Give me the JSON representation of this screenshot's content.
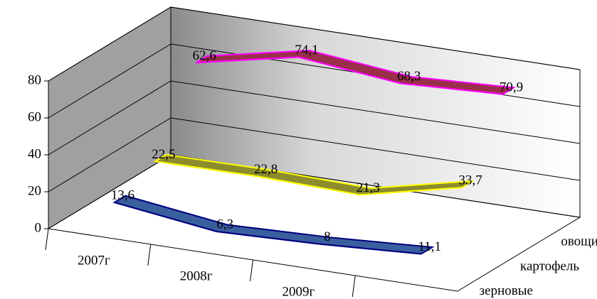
{
  "chart_data": {
    "type": "line3d",
    "categories": [
      "2007г",
      "2008г",
      "2009г",
      null
    ],
    "series": [
      {
        "name": "зерновые",
        "color": "#3a5f9e",
        "edge": "#000080",
        "values": [
          13.6,
          6.3,
          8,
          11.1
        ],
        "value_labels": [
          "13,6",
          "6,3",
          "8",
          "11,1"
        ]
      },
      {
        "name": "картофель",
        "color": "#8c8c2e",
        "edge": "#ffff00",
        "values": [
          22.5,
          22.8,
          21.3,
          33.7
        ],
        "value_labels": [
          "22,5",
          "22,8",
          "21,3",
          "33,7"
        ]
      },
      {
        "name": "овощи",
        "color": "#9a2f4a",
        "edge": "#ff00ff",
        "values": [
          62.6,
          74.1,
          68.3,
          70.9
        ],
        "value_labels": [
          "62,6",
          "74,1",
          "68,3",
          "70,9"
        ]
      }
    ],
    "ylim": [
      0,
      80
    ],
    "yticks": [
      0,
      20,
      40,
      60,
      80
    ],
    "grid": true
  }
}
